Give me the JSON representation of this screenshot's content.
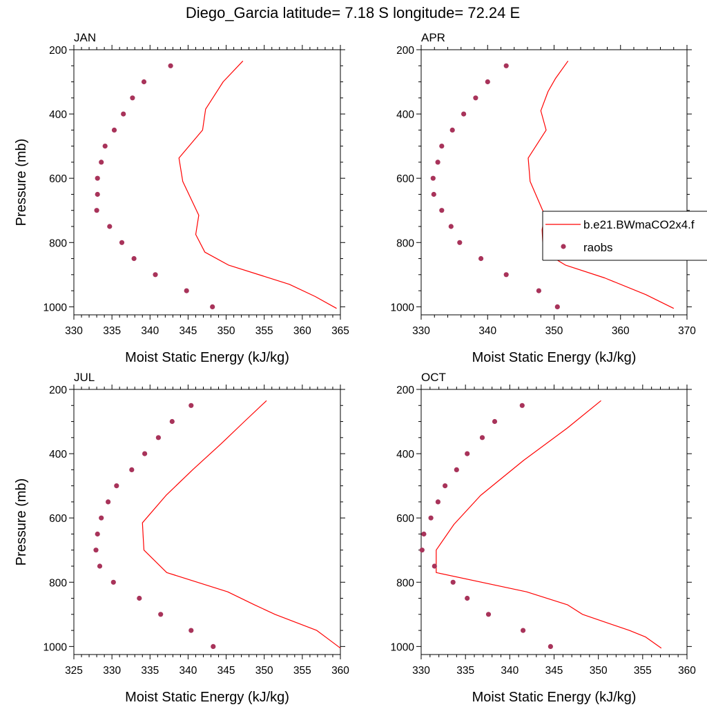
{
  "title": "Diego_Garcia  latitude= 7.18 S longitude= 72.24 E",
  "colors": {
    "model": "#ff0000",
    "obs": "#a8335a",
    "axis": "#000000",
    "legend_border": "#000000"
  },
  "legend": {
    "model_label": "b.e21.BWmaCO2x4.f",
    "obs_label": "raobs"
  },
  "chart_data": [
    {
      "type": "line",
      "panel": "JAN",
      "xlabel": "Moist Static Energy (kJ/kg)",
      "ylabel": "Pressure (mb)",
      "xlim": [
        330,
        365
      ],
      "ylim": [
        1025,
        200
      ],
      "xticks": [
        330,
        335,
        340,
        345,
        350,
        355,
        360,
        365
      ],
      "yticks": [
        200,
        400,
        600,
        800,
        1000
      ],
      "series": [
        {
          "name": "b.e21.BWmaCO2x4.f",
          "kind": "line",
          "x": [
            352.2,
            349.6,
            347.3,
            346.9,
            343.8,
            344.3,
            346.4,
            346.0,
            347.2,
            350.3,
            358.3,
            361.7,
            364.5
          ],
          "y": [
            235,
            300,
            385,
            450,
            537,
            610,
            715,
            775,
            830,
            870,
            930,
            968,
            1005
          ]
        },
        {
          "name": "raobs",
          "kind": "scatter",
          "x": [
            342.7,
            339.2,
            337.7,
            336.5,
            335.3,
            334.1,
            333.6,
            333.1,
            333.1,
            333.0,
            334.7,
            336.3,
            337.9,
            340.7,
            344.8,
            348.2
          ],
          "y": [
            250,
            300,
            350,
            400,
            450,
            500,
            550,
            600,
            650,
            700,
            750,
            800,
            850,
            900,
            950,
            1000
          ]
        }
      ]
    },
    {
      "type": "line",
      "panel": "APR",
      "xlabel": "Moist Static Energy (kJ/kg)",
      "ylabel": "",
      "xlim": [
        330,
        370
      ],
      "ylim": [
        1025,
        200
      ],
      "xticks": [
        330,
        340,
        350,
        360,
        370
      ],
      "yticks": [
        200,
        400,
        600,
        800,
        1000
      ],
      "series": [
        {
          "name": "b.e21.BWmaCO2x4.f",
          "kind": "line",
          "x": [
            352.1,
            350.2,
            349.1,
            348.0,
            348.8,
            346.1,
            346.4,
            348.6,
            348.2,
            348.3,
            348.5,
            351.7,
            357.6,
            363.8,
            368.0
          ],
          "y": [
            235,
            290,
            330,
            390,
            450,
            537,
            610,
            715,
            760,
            800,
            830,
            870,
            910,
            962,
            1005
          ]
        },
        {
          "name": "raobs",
          "kind": "scatter",
          "x": [
            342.8,
            340.0,
            338.2,
            336.4,
            334.7,
            333.1,
            332.5,
            331.8,
            331.9,
            333.1,
            334.5,
            335.8,
            339.0,
            342.8,
            347.7,
            350.5
          ],
          "y": [
            250,
            300,
            350,
            400,
            450,
            500,
            550,
            600,
            650,
            700,
            750,
            800,
            850,
            900,
            950,
            1000
          ]
        }
      ]
    },
    {
      "type": "line",
      "panel": "JUL",
      "xlabel": "Moist Static Energy (kJ/kg)",
      "ylabel": "Pressure (mb)",
      "xlim": [
        325,
        360
      ],
      "ylim": [
        1025,
        200
      ],
      "xticks": [
        325,
        330,
        335,
        340,
        345,
        350,
        355,
        360
      ],
      "yticks": [
        200,
        400,
        600,
        800,
        1000
      ],
      "series": [
        {
          "name": "b.e21.BWmaCO2x4.f",
          "kind": "line",
          "x": [
            350.3,
            347.4,
            344.3,
            340.6,
            337.1,
            334.0,
            334.1,
            334.2,
            337.2,
            345.2,
            348.7,
            351.4,
            356.9,
            358.3,
            360.0
          ],
          "y": [
            235,
            300,
            370,
            450,
            530,
            615,
            660,
            700,
            770,
            830,
            870,
            900,
            950,
            975,
            1005
          ]
        },
        {
          "name": "raobs",
          "kind": "scatter",
          "x": [
            340.4,
            337.9,
            336.1,
            334.3,
            332.6,
            330.6,
            329.5,
            328.6,
            328.1,
            327.9,
            328.4,
            330.2,
            333.6,
            336.4,
            340.4,
            343.3
          ],
          "y": [
            250,
            300,
            350,
            400,
            450,
            500,
            550,
            600,
            650,
            700,
            750,
            800,
            850,
            900,
            950,
            1000
          ]
        }
      ]
    },
    {
      "type": "line",
      "panel": "OCT",
      "xlabel": "Moist Static Energy (kJ/kg)",
      "ylabel": "",
      "xlim": [
        330,
        360
      ],
      "ylim": [
        1025,
        200
      ],
      "xticks": [
        330,
        335,
        340,
        345,
        350,
        355,
        360
      ],
      "yticks": [
        200,
        400,
        600,
        800,
        1000
      ],
      "series": [
        {
          "name": "b.e21.BWmaCO2x4.f",
          "kind": "line",
          "x": [
            350.3,
            346.5,
            341.6,
            336.7,
            333.7,
            331.7,
            331.7,
            331.7,
            341.9,
            346.5,
            348.2,
            353.5,
            355.3,
            357.1
          ],
          "y": [
            235,
            320,
            420,
            530,
            620,
            700,
            740,
            770,
            830,
            870,
            900,
            950,
            970,
            1005
          ]
        },
        {
          "name": "raobs",
          "kind": "scatter",
          "x": [
            341.4,
            338.3,
            336.9,
            335.2,
            334.0,
            332.7,
            331.9,
            331.1,
            330.3,
            330.1,
            331.5,
            333.6,
            335.2,
            337.6,
            341.5,
            344.6
          ],
          "y": [
            250,
            300,
            350,
            400,
            450,
            500,
            550,
            600,
            650,
            700,
            750,
            800,
            850,
            900,
            950,
            1000
          ]
        }
      ]
    }
  ]
}
